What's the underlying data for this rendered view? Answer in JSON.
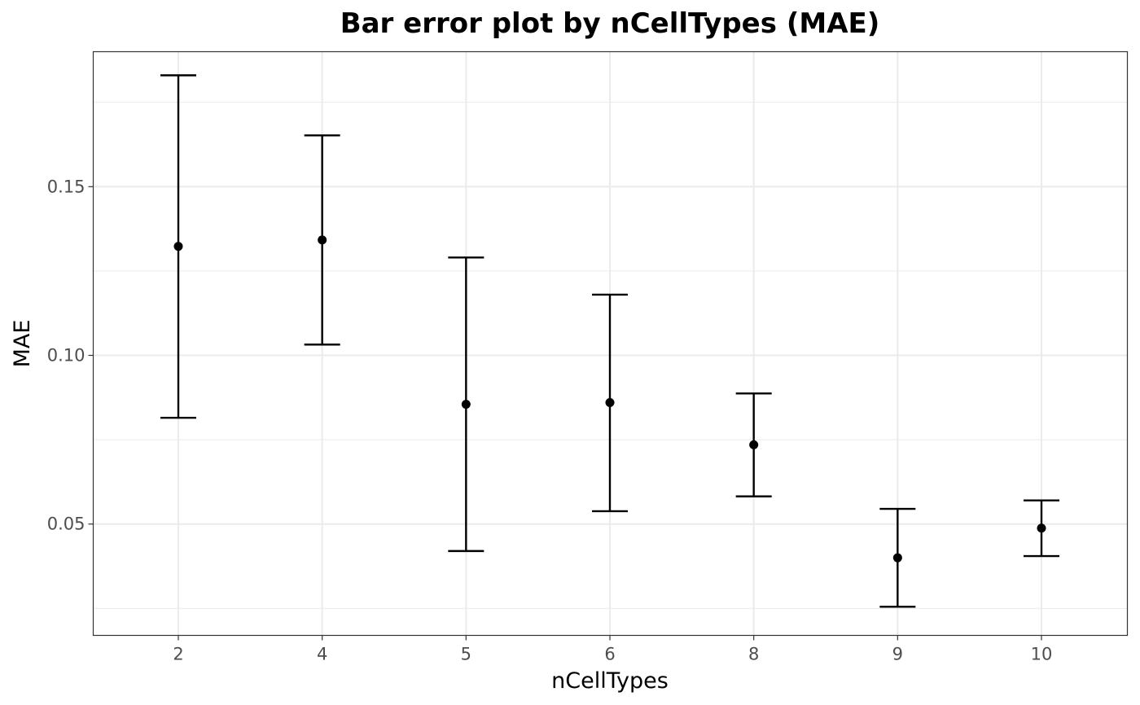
{
  "chart_data": {
    "type": "errorbar",
    "title": "Bar error plot by nCellTypes (MAE)",
    "xlabel": "nCellTypes",
    "ylabel": "MAE",
    "categories": [
      "2",
      "4",
      "5",
      "6",
      "8",
      "9",
      "10"
    ],
    "series": [
      {
        "values": [
          0.1323,
          0.1342,
          0.0855,
          0.086,
          0.0735,
          0.04,
          0.0488
        ],
        "lower": [
          0.0815,
          0.1032,
          0.042,
          0.0538,
          0.0582,
          0.0255,
          0.0405
        ],
        "upper": [
          0.183,
          0.1652,
          0.129,
          0.118,
          0.0887,
          0.0545,
          0.057
        ]
      }
    ],
    "ylim": [
      0.017,
      0.19
    ],
    "y_ticks": [
      0.05,
      0.1,
      0.15
    ],
    "y_tick_labels": [
      "0.05",
      "0.10",
      "0.15"
    ],
    "y_minor_ticks": [
      0.025,
      0.075,
      0.125,
      0.175
    ],
    "grid": true,
    "colors": {
      "mark": "#000000",
      "grid": "#ebebeb",
      "panel_border": "#333333",
      "tick_text": "#4d4d4d"
    }
  }
}
